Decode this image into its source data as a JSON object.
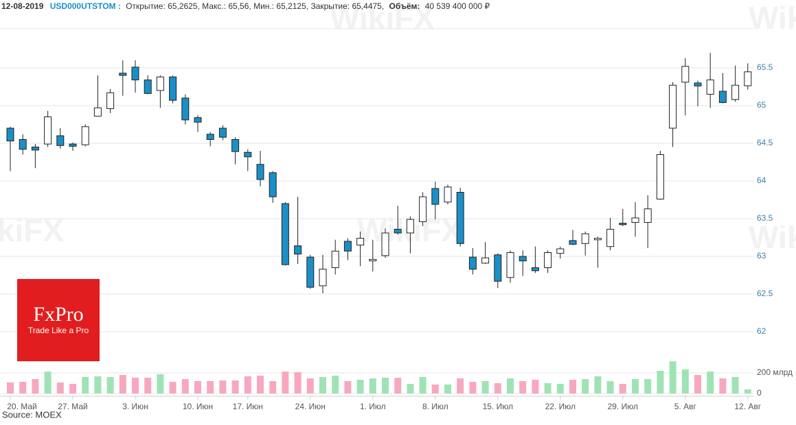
{
  "header": {
    "date": "12-08-2019",
    "ticker": "USD000UTSTOM :",
    "prices": "Открытие: 65,2625, Макс.: 65,56, Мин.: 65,2125, Закрытие: 65,4475,",
    "volume_label": "Объём:",
    "volume_text": "40 539 400 000 ₽"
  },
  "branding": {
    "logo": "FxPro",
    "slogan": "Trade Like a Pro",
    "watermark": "WikiFX"
  },
  "source": "Source: MOEX",
  "chart_data": {
    "type": "candlestick",
    "categories": [
      "20. Май",
      null,
      null,
      null,
      null,
      "27. Май",
      null,
      null,
      null,
      null,
      "3. Июн",
      null,
      null,
      null,
      null,
      "10. Июн",
      null,
      null,
      null,
      "17. Июн",
      null,
      null,
      null,
      null,
      "24. Июн",
      null,
      null,
      null,
      null,
      "1. Июл",
      null,
      null,
      null,
      null,
      "8. Июл",
      null,
      null,
      null,
      null,
      "15. Июл",
      null,
      null,
      null,
      null,
      "22. Июл",
      null,
      null,
      null,
      null,
      "29. Июл",
      null,
      null,
      null,
      null,
      "5. Авг",
      null,
      null,
      null,
      null,
      "12. Авг"
    ],
    "open": [
      64.7,
      64.55,
      64.45,
      64.49,
      64.6,
      64.49,
      64.48,
      64.86,
      64.96,
      65.43,
      65.51,
      65.34,
      65.2,
      65.38,
      65.1,
      64.84,
      64.62,
      64.7,
      64.55,
      64.38,
      64.22,
      64.11,
      63.7,
      63.14,
      62.99,
      62.61,
      62.85,
      63.2,
      63.15,
      62.94,
      63.01,
      63.36,
      63.31,
      63.46,
      63.9,
      63.72,
      63.85,
      62.99,
      62.91,
      63.02,
      62.72,
      63.0,
      62.85,
      62.85,
      63.04,
      63.21,
      63.17,
      63.22,
      63.13,
      63.44,
      63.45,
      63.45,
      63.76,
      64.7,
      65.31,
      65.3,
      65.15,
      65.19,
      65.08,
      65.2625
    ],
    "high": [
      64.72,
      64.62,
      64.49,
      64.93,
      64.7,
      64.51,
      64.75,
      65.4,
      65.22,
      65.6,
      65.6,
      65.4,
      65.4,
      65.4,
      65.15,
      64.87,
      64.65,
      64.74,
      64.58,
      64.42,
      64.4,
      64.13,
      63.72,
      63.79,
      63.02,
      63.02,
      63.22,
      63.24,
      63.33,
      63.22,
      63.37,
      63.67,
      63.53,
      63.85,
      63.99,
      63.95,
      63.91,
      63.11,
      63.19,
      63.04,
      63.08,
      63.08,
      63.13,
      63.08,
      63.13,
      63.35,
      63.33,
      63.26,
      63.51,
      63.63,
      63.72,
      63.81,
      64.4,
      65.31,
      65.63,
      65.33,
      65.7,
      65.43,
      65.53,
      65.56
    ],
    "low": [
      64.13,
      64.35,
      64.17,
      64.45,
      64.43,
      64.4,
      64.46,
      64.86,
      64.9,
      65.13,
      65.17,
      65.15,
      64.97,
      65.03,
      64.75,
      64.65,
      64.46,
      64.54,
      64.22,
      64.13,
      63.93,
      63.71,
      62.88,
      62.9,
      62.57,
      62.51,
      62.76,
      62.95,
      62.87,
      62.8,
      62.98,
      63.29,
      63.04,
      63.4,
      63.49,
      63.69,
      63.13,
      62.76,
      62.9,
      62.58,
      62.65,
      62.74,
      62.78,
      62.78,
      62.97,
      63.15,
      63.01,
      62.85,
      63.08,
      63.4,
      63.26,
      63.11,
      63.75,
      64.45,
      64.87,
      64.99,
      64.97,
      65.03,
      65.05,
      65.2125
    ],
    "close": [
      64.53,
      64.42,
      64.41,
      64.85,
      64.47,
      64.46,
      64.72,
      64.97,
      65.17,
      65.4,
      65.34,
      65.16,
      65.38,
      65.07,
      64.81,
      64.78,
      64.55,
      64.58,
      64.39,
      64.32,
      64.02,
      63.79,
      62.89,
      63.03,
      62.59,
      62.83,
      63.07,
      63.07,
      63.24,
      62.96,
      63.31,
      63.31,
      63.49,
      63.79,
      63.69,
      63.92,
      63.17,
      62.83,
      62.98,
      62.67,
      63.05,
      62.94,
      62.81,
      63.05,
      63.1,
      63.16,
      63.3,
      63.24,
      63.36,
      63.42,
      63.51,
      63.63,
      64.35,
      65.27,
      65.52,
      65.26,
      65.34,
      65.04,
      65.27,
      65.4475
    ],
    "up_color": "#ffffff",
    "down_color": "#1b8fc6",
    "ylim": [
      61.75,
      66.0
    ],
    "yticks": [
      62,
      62.5,
      63,
      63.5,
      64,
      64.5,
      65,
      65.5
    ],
    "grid": true,
    "volume": {
      "values": [
        107,
        113,
        140,
        213,
        107,
        93,
        160,
        167,
        160,
        180,
        153,
        153,
        187,
        113,
        140,
        120,
        120,
        127,
        127,
        167,
        173,
        120,
        213,
        207,
        147,
        160,
        173,
        120,
        133,
        147,
        153,
        153,
        93,
        160,
        87,
        87,
        147,
        113,
        120,
        100,
        147,
        120,
        133,
        100,
        93,
        133,
        140,
        167,
        120,
        93,
        140,
        140,
        220,
        313,
        233,
        180,
        213,
        147,
        160,
        40
      ],
      "ylim": [
        0,
        390
      ],
      "yticks": [
        0,
        {
          "value": 200,
          "label": "200 млрд"
        }
      ],
      "up_color": "#9fe3b4",
      "down_color": "#f7a8bf"
    }
  }
}
